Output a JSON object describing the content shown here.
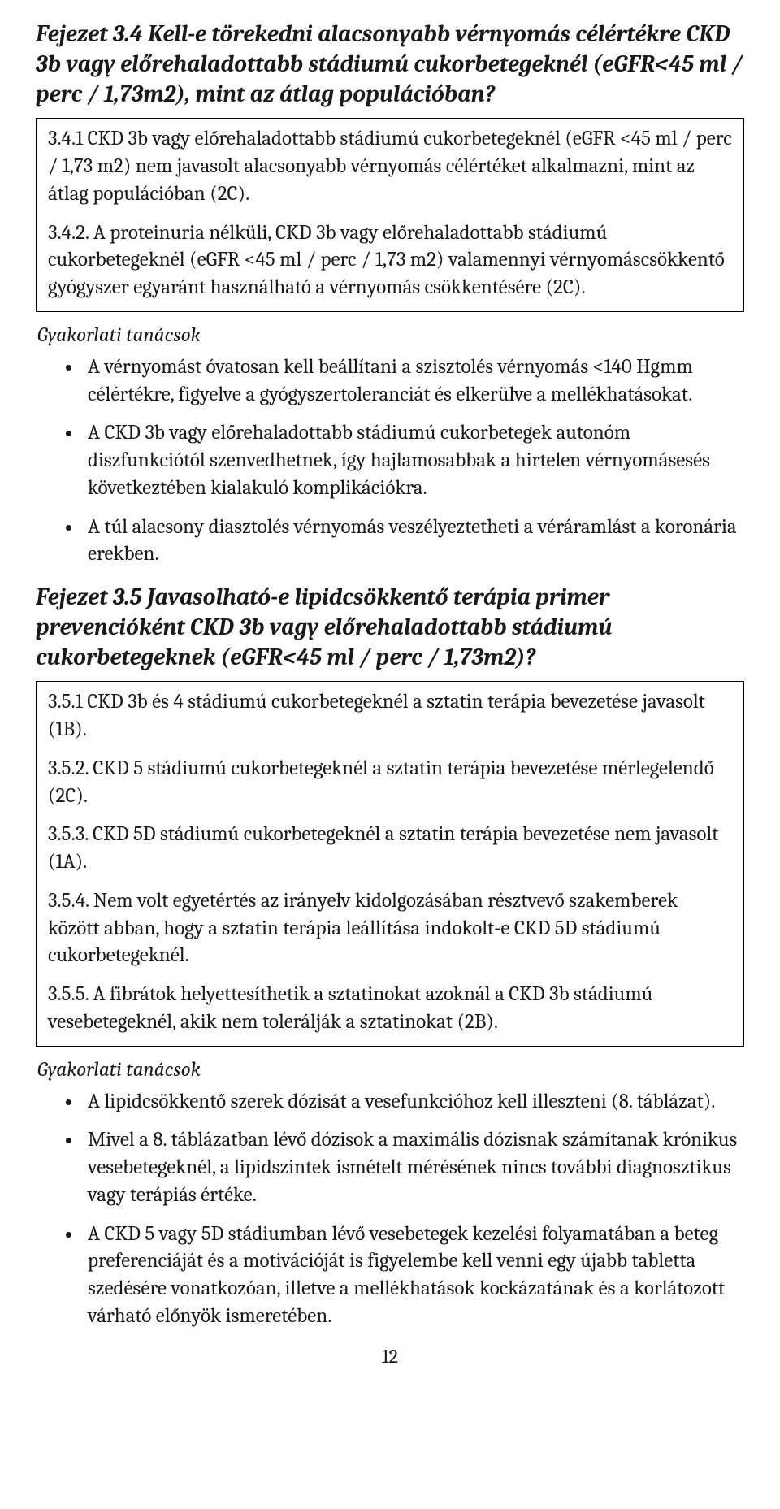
{
  "section34": {
    "title": "Fejezet 3.4 Kell-e törekedni alacsonyabb vérnyomás célértékre CKD 3b vagy előrehaladottabb stádiumú cukorbetegeknél (eGFR<45 ml / perc / 1,73m2), mint az átlag populációban?",
    "box": {
      "p1": "3.4.1 CKD 3b vagy előrehaladottabb stádiumú cukorbetegeknél (eGFR <45 ml / perc / 1,73 m2) nem javasolt alacsonyabb vérnyomás célértéket alkalmazni, mint az átlag populációban (2C).",
      "p2": "3.4.2. A proteinuria nélküli, CKD 3b vagy előrehaladottabb stádiumú cukorbetegeknél (eGFR <45 ml / perc / 1,73 m2) valamennyi vérnyomáscsökkentő gyógyszer egyaránt használható a vérnyomás csökkentésére (2C)."
    },
    "advice_label": "Gyakorlati tanácsok",
    "advice": [
      "A vérnyomást óvatosan kell beállítani a szisztolés vérnyomás <140 Hgmm célértékre, figyelve a gyógyszertoleranciát és elkerülve a mellékhatásokat.",
      "A CKD 3b vagy előrehaladottabb stádiumú cukorbetegek autonóm diszfunkciótól szenvedhetnek, így hajlamosabbak a hirtelen vérnyomásesés következtében kialakuló komplikációkra.",
      "A túl alacsony diasztolés vérnyomás veszélyeztetheti a véráramlást a koronária erekben."
    ]
  },
  "section35": {
    "title": "Fejezet 3.5 Javasolható-e lipidcsökkentő terápia primer prevencióként CKD 3b vagy előrehaladottabb stádiumú cukorbetegeknek (eGFR<45 ml / perc / 1,73m2)?",
    "box": {
      "p1": "3.5.1 CKD 3b és 4 stádiumú cukorbetegeknél a sztatin terápia bevezetése javasolt (1B).",
      "p2": "3.5.2. CKD 5 stádiumú cukorbetegeknél a sztatin terápia bevezetése mérlegelendő (2C).",
      "p3": "3.5.3. CKD 5D stádiumú cukorbetegeknél a sztatin terápia bevezetése nem javasolt (1A).",
      "p4": "3.5.4. Nem volt egyetértés az irányelv kidolgozásában résztvevő szakemberek között abban, hogy a sztatin terápia leállítása indokolt-e CKD 5D stádiumú cukorbetegeknél.",
      "p5": "3.5.5. A fibrátok helyettesíthetik a sztatinokat azoknál a CKD 3b stádiumú vesebetegeknél, akik nem tolerálják a sztatinokat (2B)."
    },
    "advice_label": "Gyakorlati tanácsok",
    "advice": [
      "A lipidcsökkentő szerek dózisát a vesefunkcióhoz kell illeszteni (8. táblázat).",
      "Mivel a 8. táblázatban lévő dózisok a maximális dózisnak számítanak krónikus vesebetegeknél, a lipidszintek ismételt mérésének nincs további diagnosztikus vagy terápiás értéke.",
      "A CKD 5 vagy 5D stádiumban lévő vesebetegek kezelési folyamatában a beteg preferenciáját és a motivációját is figyelembe kell venni egy újabb tabletta szedésére vonatkozóan, illetve a mellékhatások kockázatának és a korlátozott várható előnyök ismeretében."
    ]
  },
  "page_number": "12"
}
